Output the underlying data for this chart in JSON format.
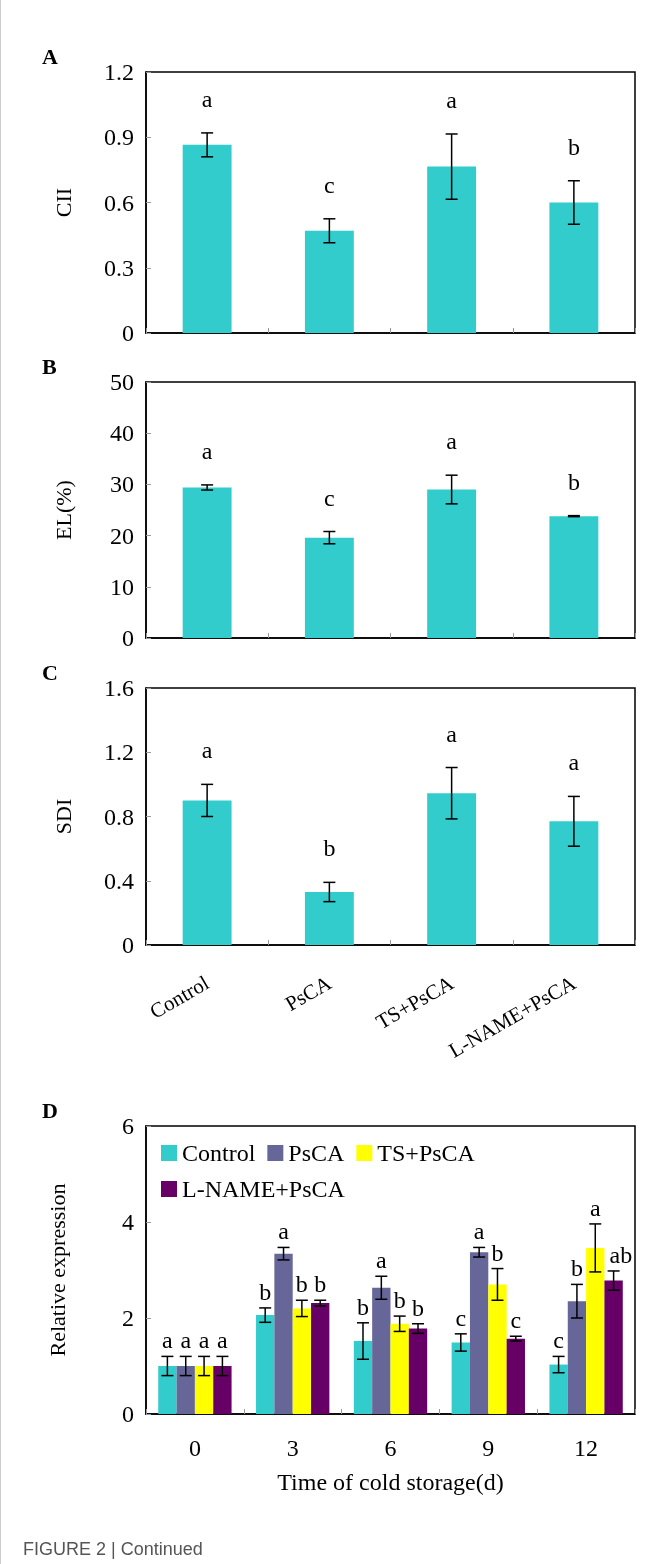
{
  "chart_data": [
    {
      "type": "bar",
      "title": "A",
      "ylabel": "CII",
      "categories": [
        "Control",
        "PsCA",
        "TS+PsCA",
        "L-NAME+PsCA"
      ],
      "values": [
        0.865,
        0.47,
        0.765,
        0.6
      ],
      "errors": [
        0.055,
        0.055,
        0.15,
        0.1
      ],
      "color": "#33cccc",
      "ylim": [
        0,
        1.2
      ],
      "yticks": [
        0,
        0.3,
        0.6,
        0.9,
        1.2
      ],
      "tick_labels": "y",
      "grid": false,
      "legend": false,
      "annotations": [
        {
          "text": "a",
          "x": "Control",
          "y": 0.92
        },
        {
          "text": "c",
          "x": "PsCA",
          "y": 0.525
        },
        {
          "text": "a",
          "x": "TS+PsCA",
          "y": 0.915
        },
        {
          "text": "b",
          "x": "L-NAME+PsCA",
          "y": 0.7
        }
      ]
    },
    {
      "type": "bar",
      "title": "B",
      "ylabel": "EL(%)",
      "categories": [
        "Control",
        "PsCA",
        "TS+PsCA",
        "L-NAME+PsCA"
      ],
      "values": [
        29.4,
        19.6,
        29.0,
        23.8
      ],
      "errors": [
        0.5,
        1.2,
        2.8,
        0.1
      ],
      "color": "#33cccc",
      "ylim": [
        0,
        50
      ],
      "yticks": [
        0,
        10,
        20,
        30,
        40,
        50
      ],
      "tick_labels": "y",
      "grid": false,
      "legend": false,
      "annotations": [
        {
          "text": "a",
          "x": "Control",
          "y": 29.9
        },
        {
          "text": "c",
          "x": "PsCA",
          "y": 20.8
        },
        {
          "text": "a",
          "x": "TS+PsCA",
          "y": 31.8
        },
        {
          "text": "b",
          "x": "L-NAME+PsCA",
          "y": 23.9
        }
      ]
    },
    {
      "type": "bar",
      "title": "C",
      "ylabel": "SDI",
      "categories": [
        "Control",
        "PsCA",
        "TS+PsCA",
        "L-NAME+PsCA"
      ],
      "values": [
        0.9,
        0.33,
        0.945,
        0.77
      ],
      "errors": [
        0.1,
        0.06,
        0.16,
        0.155
      ],
      "color": "#33cccc",
      "ylim": [
        0,
        1.6
      ],
      "yticks": [
        0,
        0.4,
        0.8,
        1.2,
        1.6
      ],
      "grid": false,
      "legend": false,
      "annotations": [
        {
          "text": "a",
          "x": "Control",
          "y": 1.0
        },
        {
          "text": "b",
          "x": "PsCA",
          "y": 0.39
        },
        {
          "text": "a",
          "x": "TS+PsCA",
          "y": 1.105
        },
        {
          "text": "a",
          "x": "L-NAME+PsCA",
          "y": 0.925
        }
      ]
    },
    {
      "type": "bar",
      "title": "D",
      "ylabel": "Relative expression",
      "xlabel": "Time of cold storage(d)",
      "categories": [
        "0",
        "3",
        "6",
        "9",
        "12"
      ],
      "ylim": [
        0,
        6
      ],
      "yticks": [
        0,
        2,
        4,
        6
      ],
      "grid": false,
      "legend": "top",
      "series": [
        {
          "name": "Control",
          "color": "#33cccc",
          "values": [
            1.0,
            2.06,
            1.52,
            1.49,
            1.03
          ],
          "errors": [
            0.2,
            0.15,
            0.38,
            0.18,
            0.17
          ]
        },
        {
          "name": "PsCA",
          "color": "#666699",
          "values": [
            1.0,
            3.34,
            2.63,
            3.37,
            2.35
          ],
          "errors": [
            0.2,
            0.13,
            0.24,
            0.1,
            0.35
          ]
        },
        {
          "name": "TS+PsCA",
          "color": "#ffff00",
          "values": [
            1.0,
            2.2,
            1.88,
            2.7,
            3.46
          ],
          "errors": [
            0.2,
            0.17,
            0.16,
            0.33,
            0.5
          ]
        },
        {
          "name": "L-NAME+PsCA",
          "color": "#660066",
          "values": [
            1.0,
            2.31,
            1.78,
            1.57,
            2.78
          ],
          "errors": [
            0.2,
            0.06,
            0.1,
            0.05,
            0.2
          ]
        }
      ],
      "annotations": [
        {
          "text": "a",
          "x": "0",
          "y": 1.2
        },
        {
          "text": "a",
          "x": "0",
          "y": 1.2
        },
        {
          "text": "a",
          "x": "0",
          "y": 1.2
        },
        {
          "text": "a",
          "x": "0",
          "y": 1.2
        },
        {
          "text": "b",
          "x": "3",
          "y": 2.21
        },
        {
          "text": "a",
          "x": "3",
          "y": 3.47
        },
        {
          "text": "b",
          "x": "3",
          "y": 2.37
        },
        {
          "text": "b",
          "x": "3",
          "y": 2.37
        },
        {
          "text": "b",
          "x": "6",
          "y": 1.9
        },
        {
          "text": "a",
          "x": "6",
          "y": 2.87
        },
        {
          "text": "b",
          "x": "6",
          "y": 2.04
        },
        {
          "text": "b",
          "x": "6",
          "y": 1.88
        },
        {
          "text": "c",
          "x": "9",
          "y": 1.67
        },
        {
          "text": "a",
          "x": "9",
          "y": 3.47
        },
        {
          "text": "b",
          "x": "9",
          "y": 3.03
        },
        {
          "text": "c",
          "x": "9",
          "y": 1.62
        },
        {
          "text": "c",
          "x": "12",
          "y": 1.2
        },
        {
          "text": "b",
          "x": "12",
          "y": 2.7
        },
        {
          "text": "a",
          "x": "12",
          "y": 3.96
        },
        {
          "text": "ab",
          "x": "12",
          "y": 2.98
        },
        "FIGURE 2 | Continued"
      ]
    }
  ]
}
